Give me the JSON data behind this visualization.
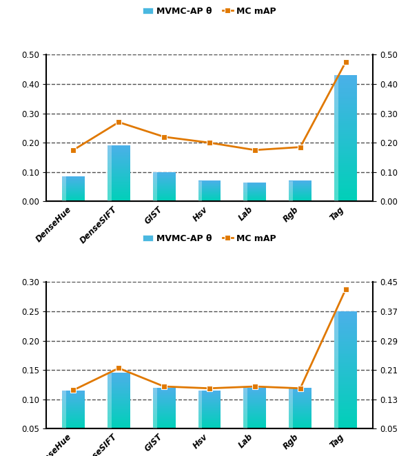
{
  "categories": [
    "DenseHue",
    "DenseSIFT",
    "GIST",
    "Hsv",
    "Lab",
    "Rgb",
    "Tag"
  ],
  "top": {
    "bar_values": [
      0.085,
      0.19,
      0.1,
      0.07,
      0.065,
      0.07,
      0.43
    ],
    "line_values": [
      0.175,
      0.27,
      0.22,
      0.2,
      0.175,
      0.185,
      0.475
    ],
    "ylim_left": [
      0.0,
      0.5
    ],
    "ylim_right": [
      0.0,
      0.5
    ],
    "yticks_left": [
      0.0,
      0.1,
      0.2,
      0.3,
      0.4,
      0.5
    ],
    "yticks_right": [
      0.0,
      0.1,
      0.2,
      0.3,
      0.4,
      0.5
    ]
  },
  "bottom": {
    "bar_values": [
      0.115,
      0.145,
      0.12,
      0.115,
      0.12,
      0.12,
      0.25
    ],
    "line_values": [
      0.155,
      0.215,
      0.165,
      0.16,
      0.165,
      0.16,
      0.43
    ],
    "ylim_left": [
      0.05,
      0.3
    ],
    "ylim_right": [
      0.05,
      0.45
    ],
    "yticks_left": [
      0.05,
      0.1,
      0.15,
      0.2,
      0.25,
      0.3
    ],
    "yticks_right": [
      0.05,
      0.13,
      0.21,
      0.29,
      0.37,
      0.45
    ]
  },
  "bar_color_bot": "#00d0b8",
  "bar_color_top": "#4ab0e8",
  "line_color": "#e07800",
  "line_marker": "s",
  "legend_bar_label": "MVMC-AP θ",
  "legend_line_label": "MC mAP",
  "background_color": "#ffffff",
  "grid_color": "#222222",
  "tick_label_fontsize": 8.5,
  "bar_width": 0.5
}
